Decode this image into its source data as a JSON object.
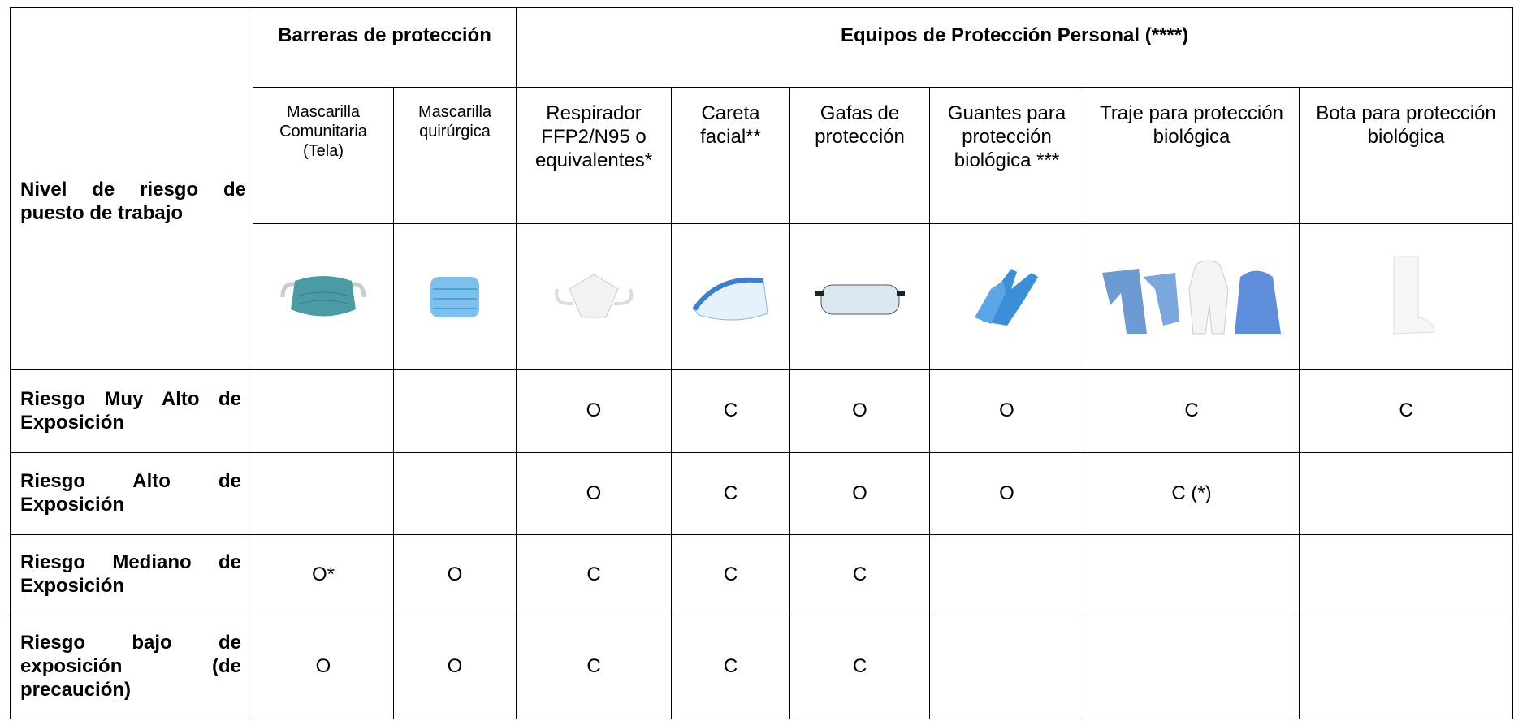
{
  "header": {
    "corner": "Nivel de riesgo de puesto de trabajo",
    "groups": [
      "Barreras de protección",
      "Equipos de Protección Personal (****)"
    ],
    "columns": [
      "Mascarilla Comunitaria (Tela)",
      "Mascarilla quirúrgica",
      "Respirador FFP2/N95 o equivalentes*",
      "Careta facial**",
      "Gafas de protección",
      "Guantes para protección biológica ***",
      "Traje para protección biológica",
      "Bota para protección biológica"
    ]
  },
  "rows": [
    {
      "label": "Riesgo Muy Alto de Exposición",
      "cells": [
        null,
        null,
        "O",
        "C",
        "O",
        "O",
        "C",
        "C"
      ]
    },
    {
      "label": "Riesgo Alto de Exposición",
      "cells": [
        null,
        null,
        "O",
        "C",
        "O",
        "O",
        "C (*)",
        null
      ]
    },
    {
      "label": "Riesgo Mediano de Exposición",
      "cells": [
        "O*",
        "O",
        "C",
        "C",
        "C",
        null,
        null,
        null
      ]
    },
    {
      "label": "Riesgo bajo de exposición (de precaución)",
      "cells": [
        "O",
        "O",
        "C",
        "C",
        "C",
        null,
        null,
        null
      ]
    }
  ]
}
